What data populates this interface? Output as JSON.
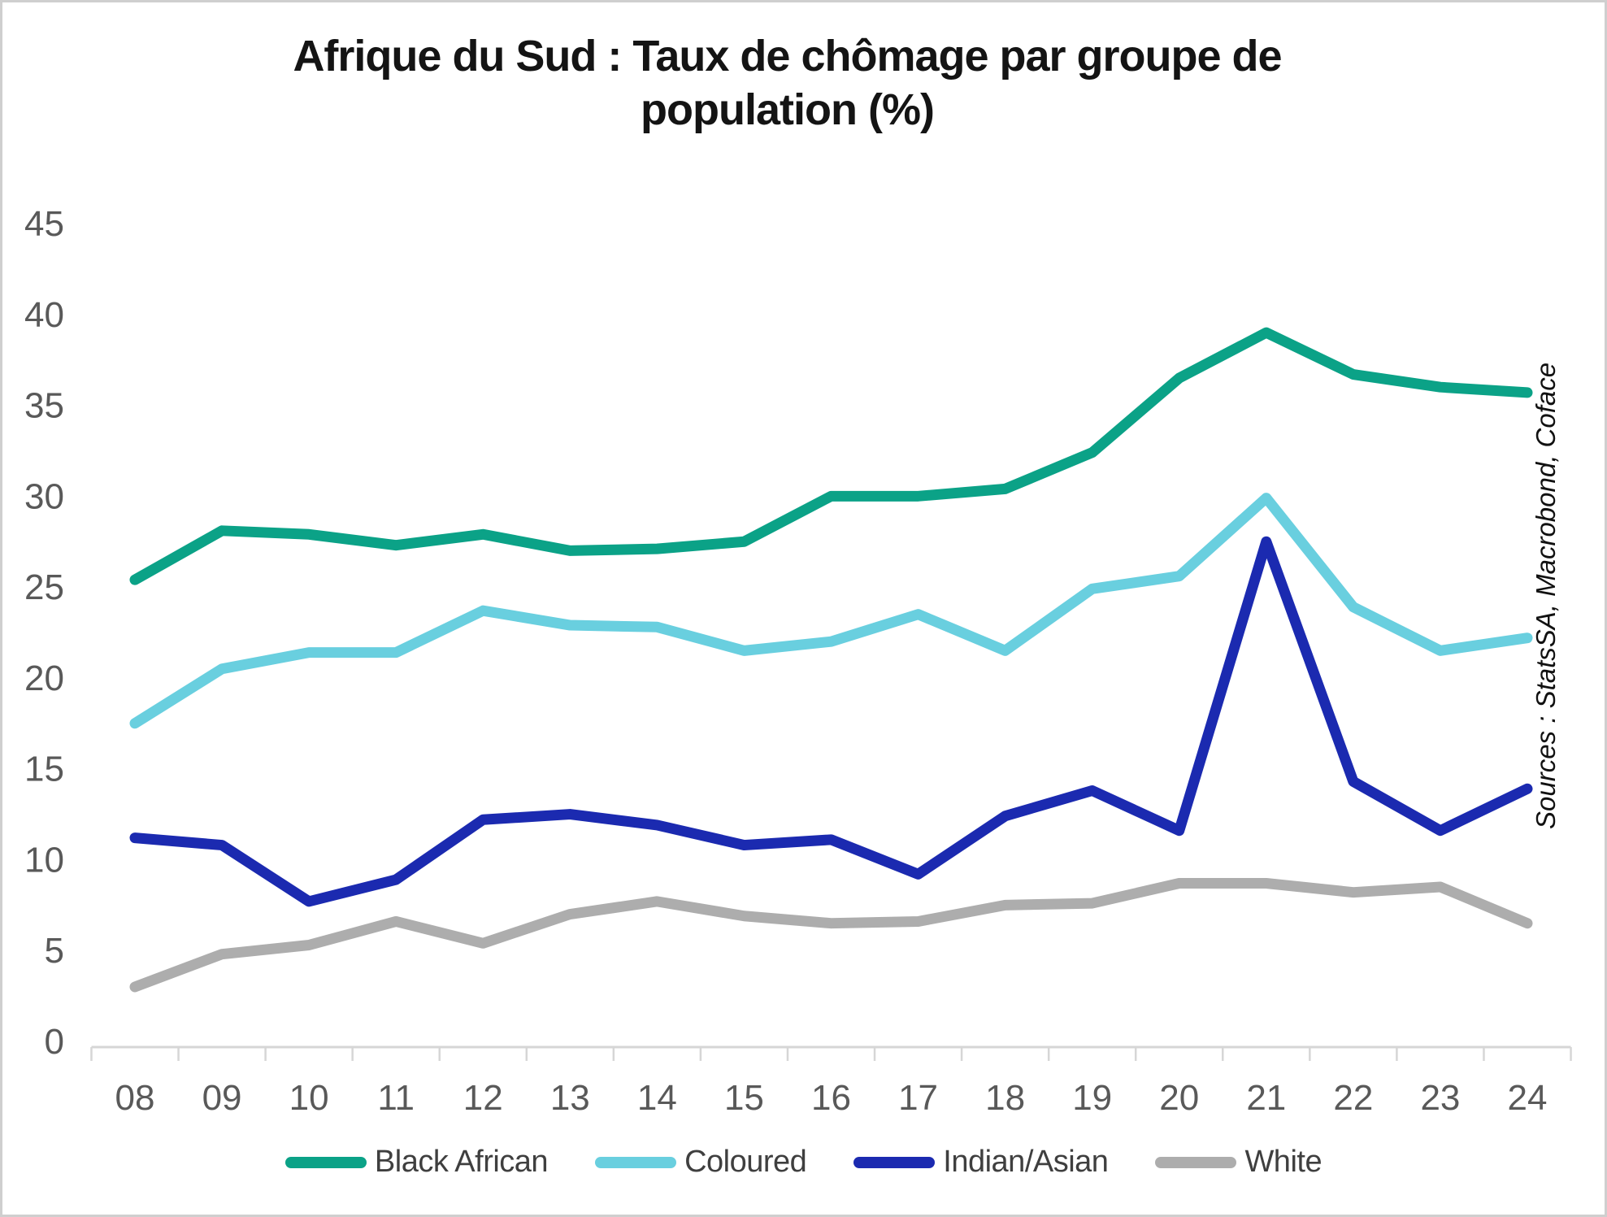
{
  "title": "Afrique du Sud : Taux de chômage par groupe de population (%)",
  "source_note": "Sources : StatsSA, Macrobond, Coface",
  "colors": {
    "axis_text": "#595959",
    "axis_line": "#d6d6d6",
    "legend_text": "#3f3f3f",
    "title_text": "#141414"
  },
  "chart_data": {
    "type": "line",
    "title": "Afrique du Sud : Taux de chômage par groupe de population (%)",
    "categories": [
      "08",
      "09",
      "10",
      "11",
      "12",
      "13",
      "14",
      "15",
      "16",
      "17",
      "18",
      "19",
      "20",
      "21",
      "22",
      "23",
      "24"
    ],
    "series": [
      {
        "name": "Black African",
        "color": "#0ba287",
        "values": [
          25.4,
          28.1,
          27.9,
          27.3,
          27.9,
          27.0,
          27.1,
          27.5,
          30.0,
          30.0,
          30.4,
          32.4,
          36.5,
          39.0,
          36.7,
          36.0,
          35.7
        ]
      },
      {
        "name": "Coloured",
        "color": "#69cfdf",
        "values": [
          17.5,
          20.5,
          21.4,
          21.4,
          23.7,
          22.9,
          22.8,
          21.5,
          22.0,
          23.5,
          21.5,
          24.9,
          25.6,
          29.9,
          23.9,
          21.5,
          22.2
        ]
      },
      {
        "name": "Indian/Asian",
        "color": "#1b2ab0",
        "values": [
          11.2,
          10.8,
          7.7,
          8.9,
          12.2,
          12.5,
          11.9,
          10.8,
          11.1,
          9.2,
          12.4,
          13.8,
          11.6,
          27.5,
          14.3,
          11.6,
          13.9
        ]
      },
      {
        "name": "White",
        "color": "#adadad",
        "values": [
          3.0,
          4.8,
          5.3,
          6.6,
          5.4,
          7.0,
          7.7,
          6.9,
          6.5,
          6.6,
          7.5,
          7.6,
          8.7,
          8.7,
          8.2,
          8.5,
          6.5
        ]
      }
    ],
    "xlabel": "",
    "ylabel": "",
    "ylim": [
      0,
      45
    ],
    "y_ticks": [
      0,
      5,
      10,
      15,
      20,
      25,
      30,
      35,
      40,
      45
    ],
    "grid": false,
    "legend_position": "bottom"
  }
}
